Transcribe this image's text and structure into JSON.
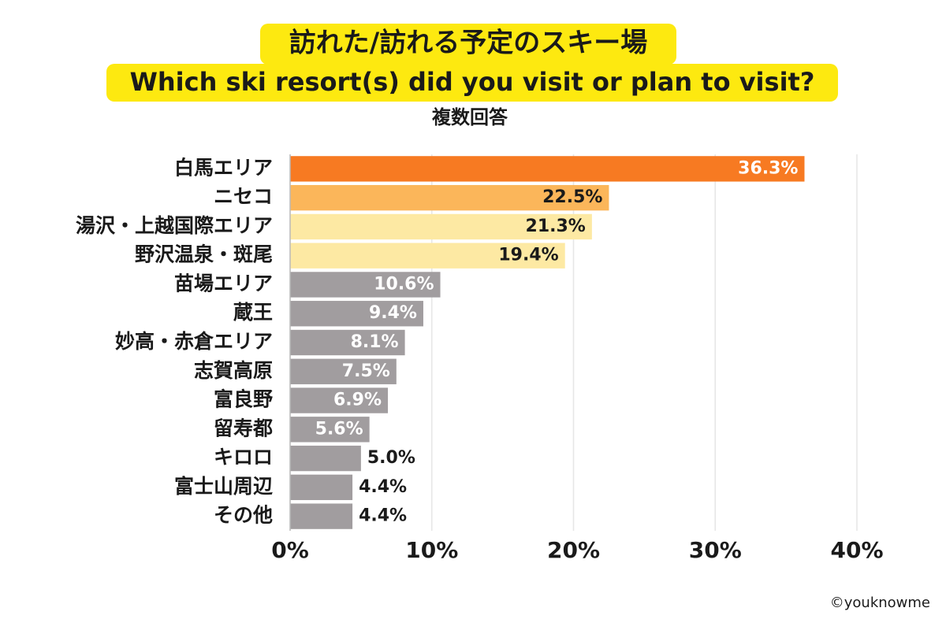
{
  "chart_data": {
    "type": "barh",
    "title": "訪れた/訪れる予定のスキー場",
    "subtitle": "Which ski resort(s) did you visit or plan to visit?",
    "note": "複数回答",
    "credit": "©youknowme",
    "categories": [
      "白馬エリア",
      "ニセコ",
      "湯沢・上越国際エリア",
      "野沢温泉・斑尾",
      "苗場エリア",
      "蔵王",
      "妙高・赤倉エリア",
      "志賀高原",
      "富良野",
      "留寿都",
      "キロロ",
      "富士山周辺",
      "その他"
    ],
    "values": [
      36.3,
      22.5,
      21.3,
      19.4,
      10.6,
      9.4,
      8.1,
      7.5,
      6.9,
      5.6,
      5.0,
      4.4,
      4.4
    ],
    "value_labels": [
      "36.3%",
      "22.5%",
      "21.3%",
      "19.4%",
      "10.6%",
      "9.4%",
      "8.1%",
      "7.5%",
      "6.9%",
      "5.6%",
      "5.0%",
      "4.4%",
      "4.4%"
    ],
    "colors": [
      "#f77a22",
      "#fbb65a",
      "#fde9a3",
      "#fde9a3",
      "#a19d9f",
      "#a19d9f",
      "#a19d9f",
      "#a19d9f",
      "#a19d9f",
      "#a19d9f",
      "#a19d9f",
      "#a19d9f",
      "#a19d9f"
    ],
    "xlim": [
      0,
      40
    ],
    "xticks": [
      {
        "value": 0,
        "label": "0%"
      },
      {
        "value": 10,
        "label": "10%"
      },
      {
        "value": 20,
        "label": "20%"
      },
      {
        "value": 30,
        "label": "30%"
      },
      {
        "value": 40,
        "label": "40%"
      }
    ],
    "grid": true
  }
}
